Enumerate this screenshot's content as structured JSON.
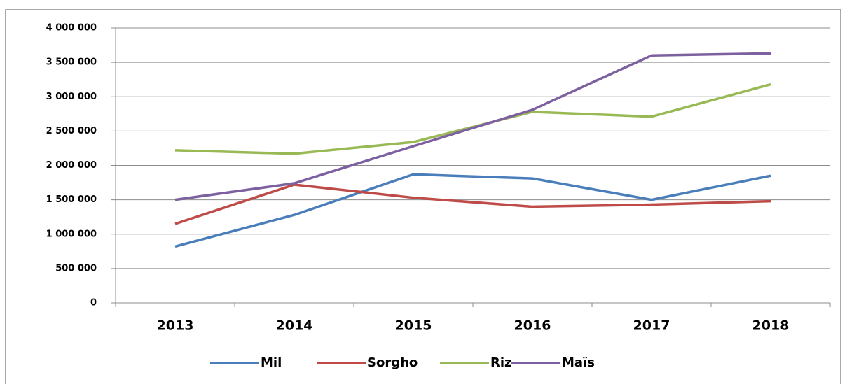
{
  "chart_data": {
    "type": "line",
    "categories": [
      "2013",
      "2014",
      "2015",
      "2016",
      "2017",
      "2018"
    ],
    "series": [
      {
        "name": "Mil",
        "color": "#4a7ebb",
        "values": [
          820000,
          1280000,
          1870000,
          1810000,
          1500000,
          1850000
        ]
      },
      {
        "name": "Sorgho",
        "color": "#be4b48",
        "values": [
          1150000,
          1720000,
          1530000,
          1400000,
          1430000,
          1480000
        ]
      },
      {
        "name": "Riz",
        "color": "#98b954",
        "values": [
          2220000,
          2170000,
          2340000,
          2780000,
          2710000,
          3180000
        ]
      },
      {
        "name": "Maïs",
        "color": "#7d60a0",
        "values": [
          1500000,
          1740000,
          2280000,
          2810000,
          3600000,
          3630000
        ]
      }
    ],
    "ylim": [
      0,
      4000000
    ],
    "yticks": [
      0,
      {
        "value": 500000,
        "label": "500 000"
      },
      {
        "value": 1000000,
        "label": "1 000 000"
      },
      {
        "value": 1500000,
        "label": "1 500 000"
      },
      {
        "value": 2000000,
        "label": "2 000 000"
      },
      {
        "value": 2500000,
        "label": "2 500 000"
      },
      {
        "value": 3000000,
        "label": "3 000 000"
      },
      {
        "value": 3500000,
        "label": "3 500 000"
      },
      {
        "value": 4000000,
        "label": "4 000 000"
      }
    ],
    "grid": true,
    "legend": "bottom"
  }
}
